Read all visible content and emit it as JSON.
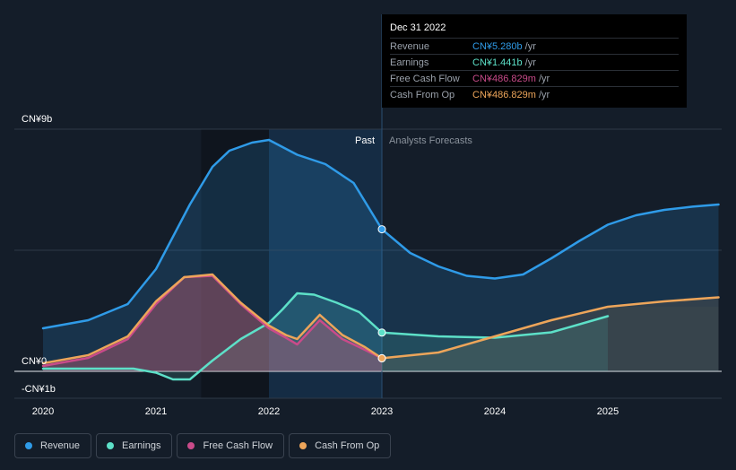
{
  "chart_data": {
    "type": "area",
    "x_axis": {
      "ticks": [
        "2020",
        "2021",
        "2022",
        "2023",
        "2024",
        "2025"
      ],
      "range": [
        2019.75,
        2025.98
      ]
    },
    "y_axis": {
      "range": [
        -1,
        9
      ],
      "labels": [
        {
          "text": "CN¥9b",
          "value": 9
        },
        {
          "text": "CN¥0",
          "value": 0
        },
        {
          "text": "-CN¥1b",
          "value": -1
        }
      ]
    },
    "divider_x": 2023.0,
    "section_labels": {
      "past": "Past",
      "forecast": "Analysts Forecasts"
    },
    "series": [
      {
        "name": "Revenue",
        "color": "#2f9be8",
        "points": [
          [
            2020.0,
            1.6
          ],
          [
            2020.4,
            1.9
          ],
          [
            2020.75,
            2.5
          ],
          [
            2021.0,
            3.8
          ],
          [
            2021.3,
            6.2
          ],
          [
            2021.5,
            7.6
          ],
          [
            2021.65,
            8.2
          ],
          [
            2021.85,
            8.5
          ],
          [
            2022.0,
            8.6
          ],
          [
            2022.25,
            8.05
          ],
          [
            2022.5,
            7.7
          ],
          [
            2022.75,
            7.0
          ],
          [
            2023.0,
            5.28
          ],
          [
            2023.25,
            4.4
          ],
          [
            2023.5,
            3.9
          ],
          [
            2023.75,
            3.55
          ],
          [
            2024.0,
            3.45
          ],
          [
            2024.25,
            3.6
          ],
          [
            2024.5,
            4.2
          ],
          [
            2024.75,
            4.85
          ],
          [
            2025.0,
            5.45
          ],
          [
            2025.25,
            5.8
          ],
          [
            2025.5,
            6.0
          ],
          [
            2025.75,
            6.12
          ],
          [
            2025.98,
            6.2
          ]
        ]
      },
      {
        "name": "Earnings",
        "color": "#5de0c8",
        "points": [
          [
            2020.0,
            0.1
          ],
          [
            2020.4,
            0.1
          ],
          [
            2020.8,
            0.1
          ],
          [
            2021.0,
            -0.05
          ],
          [
            2021.15,
            -0.3
          ],
          [
            2021.3,
            -0.3
          ],
          [
            2021.5,
            0.4
          ],
          [
            2021.75,
            1.2
          ],
          [
            2022.0,
            1.8
          ],
          [
            2022.12,
            2.3
          ],
          [
            2022.25,
            2.9
          ],
          [
            2022.4,
            2.85
          ],
          [
            2022.6,
            2.55
          ],
          [
            2022.8,
            2.2
          ],
          [
            2023.0,
            1.441
          ],
          [
            2023.5,
            1.3
          ],
          [
            2024.0,
            1.25
          ],
          [
            2024.5,
            1.45
          ],
          [
            2025.0,
            2.05
          ]
        ]
      },
      {
        "name": "Free Cash Flow",
        "color": "#c94b8a",
        "points": [
          [
            2020.0,
            0.2
          ],
          [
            2020.4,
            0.5
          ],
          [
            2020.75,
            1.2
          ],
          [
            2021.0,
            2.5
          ],
          [
            2021.25,
            3.5
          ],
          [
            2021.5,
            3.55
          ],
          [
            2021.75,
            2.5
          ],
          [
            2022.0,
            1.6
          ],
          [
            2022.15,
            1.25
          ],
          [
            2022.25,
            1.0
          ],
          [
            2022.45,
            1.9
          ],
          [
            2022.65,
            1.2
          ],
          [
            2022.85,
            0.8
          ],
          [
            2023.0,
            0.487
          ]
        ]
      },
      {
        "name": "Cash From Op",
        "color": "#eda55a",
        "points": [
          [
            2020.0,
            0.3
          ],
          [
            2020.4,
            0.6
          ],
          [
            2020.75,
            1.3
          ],
          [
            2021.0,
            2.6
          ],
          [
            2021.25,
            3.5
          ],
          [
            2021.5,
            3.6
          ],
          [
            2021.75,
            2.55
          ],
          [
            2022.0,
            1.7
          ],
          [
            2022.15,
            1.35
          ],
          [
            2022.25,
            1.2
          ],
          [
            2022.45,
            2.1
          ],
          [
            2022.65,
            1.35
          ],
          [
            2022.85,
            0.9
          ],
          [
            2023.0,
            0.487
          ],
          [
            2023.5,
            0.7
          ],
          [
            2024.0,
            1.3
          ],
          [
            2024.5,
            1.9
          ],
          [
            2025.0,
            2.4
          ],
          [
            2025.5,
            2.6
          ],
          [
            2025.98,
            2.75
          ]
        ]
      }
    ],
    "highlight_x": 2023.0
  },
  "tooltip": {
    "date": "Dec 31 2022",
    "rows": [
      {
        "label": "Revenue",
        "value": "CN¥5.280b",
        "unit": "/yr",
        "color": "#2f9be8"
      },
      {
        "label": "Earnings",
        "value": "CN¥1.441b",
        "unit": "/yr",
        "color": "#5de0c8"
      },
      {
        "label": "Free Cash Flow",
        "value": "CN¥486.829m",
        "unit": "/yr",
        "color": "#c94b8a"
      },
      {
        "label": "Cash From Op",
        "value": "CN¥486.829m",
        "unit": "/yr",
        "color": "#eda55a"
      }
    ]
  },
  "legend": [
    {
      "label": "Revenue",
      "color": "#2f9be8"
    },
    {
      "label": "Earnings",
      "color": "#5de0c8"
    },
    {
      "label": "Free Cash Flow",
      "color": "#c94b8a"
    },
    {
      "label": "Cash From Op",
      "color": "#eda55a"
    }
  ]
}
